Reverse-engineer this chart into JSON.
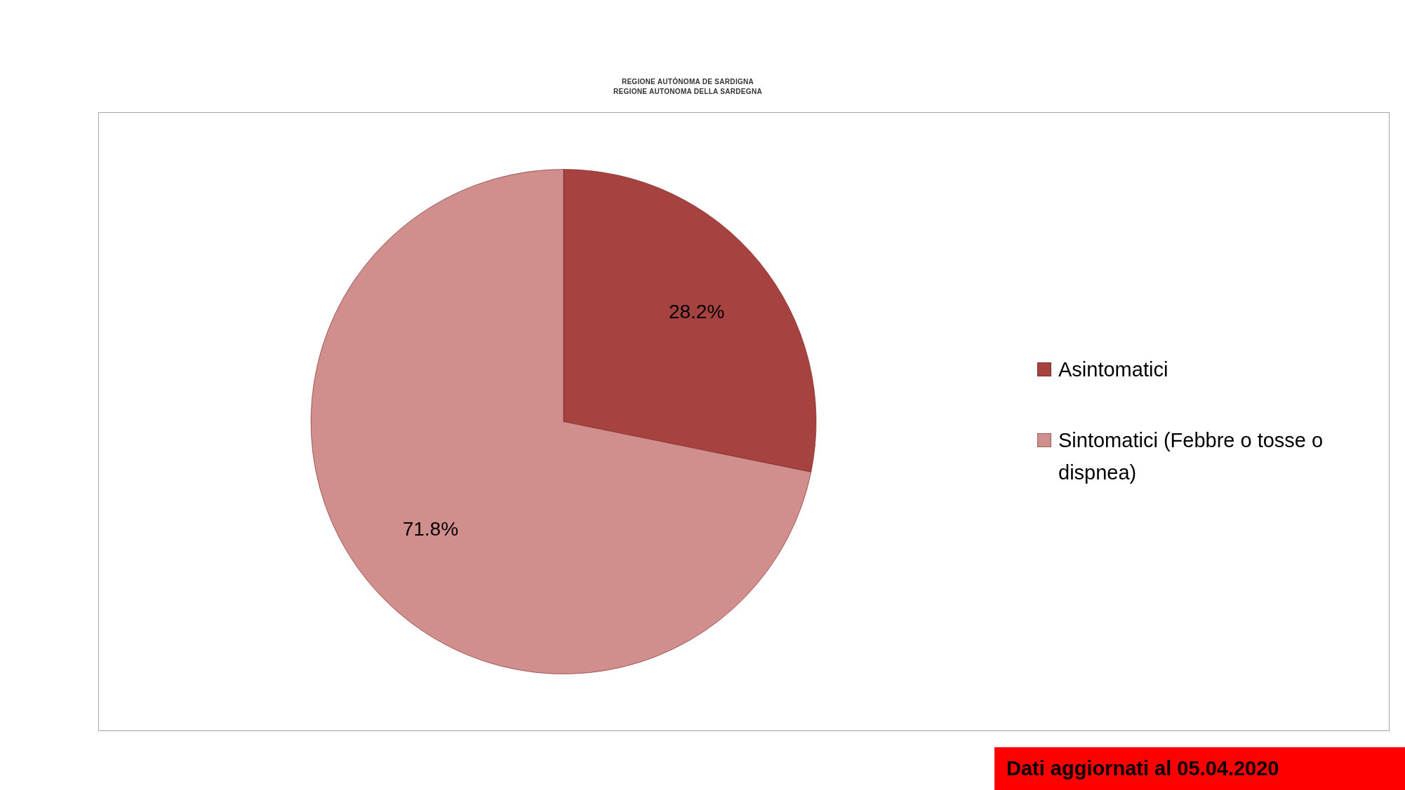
{
  "chart_data": {
    "type": "pie",
    "categories": [
      "Asintomatici",
      "Sintomatici (Febbre o tosse o dispnea)"
    ],
    "values": [
      28.2,
      71.8
    ],
    "colors": [
      "#a64340",
      "#d08e8d"
    ],
    "value_labels": [
      "28.2%",
      "71.8%"
    ],
    "legend": "right",
    "annotations": [
      "REGIONE AUTÒNOMA DE SARDIGNA",
      "REGIONE AUTONOMA DELLA SARDEGNA",
      "Dati aggiornati al 05.04.2020"
    ]
  }
}
